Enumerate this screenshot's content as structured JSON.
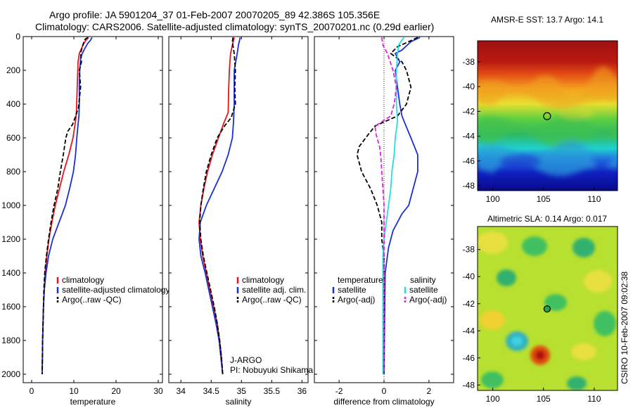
{
  "figure": {
    "title_line1": "Argo profile: JA 5901204_37 01-Feb-2007 20070205_89 42.386S 105.356E",
    "title_line2": "Climatology: CARS2006. Satellite-adjusted climatology: synTS_20070201.nc (0.29d earlier)",
    "side_label": "CSIRO 10-Feb-2007 09:02:38"
  },
  "colors": {
    "climatology": "#e8141b",
    "satellite": "#1a2fd6",
    "argo": "#000000",
    "sat_salinity": "#22e0e0",
    "argo_adj_salinity": "#e020e0"
  },
  "chart_data": [
    {
      "id": "temperature",
      "type": "line",
      "xlabel": "temperature",
      "ylabel": "",
      "xlim": [
        -2,
        31
      ],
      "ylim": [
        2050,
        0
      ],
      "xticks": [
        0,
        10,
        20,
        30
      ],
      "yticks": [
        0,
        200,
        400,
        600,
        800,
        1000,
        1200,
        1400,
        1600,
        1800,
        2000
      ],
      "legend": [
        "climatology",
        "satellite-adjusted climatology",
        "Argo(..raw -QC)"
      ],
      "series": [
        {
          "name": "climatology",
          "color": "#e8141b",
          "dash": "",
          "points": [
            [
              13.5,
              5
            ],
            [
              12.6,
              30
            ],
            [
              12.0,
              60
            ],
            [
              11.3,
              100
            ],
            [
              11.0,
              150
            ],
            [
              10.8,
              300
            ],
            [
              10.6,
              450
            ],
            [
              10.4,
              500
            ],
            [
              9.8,
              600
            ],
            [
              8.8,
              700
            ],
            [
              7.6,
              800
            ],
            [
              6.6,
              900
            ],
            [
              5.6,
              1000
            ],
            [
              4.8,
              1100
            ],
            [
              4.1,
              1200
            ],
            [
              3.6,
              1300
            ],
            [
              3.2,
              1400
            ],
            [
              3.0,
              1500
            ],
            [
              2.8,
              1600
            ],
            [
              2.7,
              1700
            ],
            [
              2.6,
              1800
            ],
            [
              2.55,
              1900
            ],
            [
              2.5,
              2000
            ]
          ]
        },
        {
          "name": "satellite-adjusted climatology",
          "color": "#1a2fd6",
          "dash": "",
          "points": [
            [
              14.3,
              5
            ],
            [
              14.0,
              20
            ],
            [
              13.3,
              40
            ],
            [
              12.6,
              70
            ],
            [
              12.0,
              100
            ],
            [
              11.6,
              130
            ],
            [
              11.4,
              200
            ],
            [
              11.3,
              300
            ],
            [
              11.3,
              400
            ],
            [
              11.2,
              470
            ],
            [
              11.0,
              520
            ],
            [
              10.7,
              600
            ],
            [
              10.4,
              700
            ],
            [
              9.9,
              800
            ],
            [
              9.0,
              900
            ],
            [
              8.0,
              1000
            ],
            [
              6.5,
              1100
            ],
            [
              5.0,
              1200
            ],
            [
              4.0,
              1300
            ],
            [
              3.4,
              1400
            ],
            [
              3.0,
              1500
            ],
            [
              2.8,
              1600
            ],
            [
              2.7,
              1700
            ],
            [
              2.6,
              1800
            ],
            [
              2.55,
              1900
            ],
            [
              2.5,
              2000
            ]
          ]
        },
        {
          "name": "Argo(..raw -QC)",
          "color": "#000000",
          "dash": "6,3",
          "points": [
            [
              13.3,
              5
            ],
            [
              12.7,
              15
            ],
            [
              12.4,
              30
            ],
            [
              12.0,
              60
            ],
            [
              11.6,
              100
            ],
            [
              11.8,
              150
            ],
            [
              11.3,
              200
            ],
            [
              11.6,
              300
            ],
            [
              11.1,
              420
            ],
            [
              10.3,
              480
            ],
            [
              9.7,
              520
            ],
            [
              8.6,
              560
            ],
            [
              8.1,
              600
            ],
            [
              7.5,
              700
            ],
            [
              6.8,
              800
            ],
            [
              6.2,
              900
            ],
            [
              5.3,
              1000
            ],
            [
              4.6,
              1100
            ],
            [
              4.0,
              1200
            ],
            [
              3.5,
              1300
            ],
            [
              3.1,
              1400
            ],
            [
              2.9,
              1500
            ],
            [
              2.8,
              1600
            ],
            [
              2.7,
              1700
            ],
            [
              2.6,
              1800
            ],
            [
              2.55,
              1900
            ],
            [
              2.5,
              2000
            ]
          ]
        }
      ]
    },
    {
      "id": "salinity",
      "type": "line",
      "xlabel": "salinity",
      "ylabel": "",
      "xlim": [
        33.8,
        36.1
      ],
      "ylim": [
        2050,
        0
      ],
      "xticks": [
        34,
        34.5,
        35,
        35.5,
        36
      ],
      "xtick_labels": [
        "34",
        "34.5",
        "35",
        "35.5",
        "36"
      ],
      "legend": [
        "climatology",
        "satellite adj. clim.",
        "Argo(..raw -QC)"
      ],
      "annotation_line1": "J-ARGO",
      "annotation_line2": "PI: Nobuyuki Shikama",
      "series": [
        {
          "name": "climatology",
          "color": "#e8141b",
          "dash": "",
          "points": [
            [
              34.88,
              5
            ],
            [
              34.85,
              50
            ],
            [
              34.82,
              100
            ],
            [
              34.8,
              200
            ],
            [
              34.79,
              300
            ],
            [
              34.78,
              450
            ],
            [
              34.7,
              520
            ],
            [
              34.62,
              600
            ],
            [
              34.52,
              700
            ],
            [
              34.44,
              800
            ],
            [
              34.38,
              900
            ],
            [
              34.33,
              1000
            ],
            [
              34.3,
              1100
            ],
            [
              34.32,
              1200
            ],
            [
              34.36,
              1300
            ],
            [
              34.42,
              1400
            ],
            [
              34.48,
              1500
            ],
            [
              34.54,
              1600
            ],
            [
              34.6,
              1700
            ],
            [
              34.64,
              1800
            ],
            [
              34.67,
              1900
            ],
            [
              34.69,
              2000
            ]
          ]
        },
        {
          "name": "satellite adj. clim.",
          "color": "#1a2fd6",
          "dash": "",
          "points": [
            [
              34.98,
              5
            ],
            [
              34.95,
              50
            ],
            [
              34.93,
              100
            ],
            [
              34.88,
              200
            ],
            [
              34.88,
              300
            ],
            [
              34.88,
              400
            ],
            [
              34.87,
              500
            ],
            [
              34.85,
              600
            ],
            [
              34.78,
              700
            ],
            [
              34.68,
              800
            ],
            [
              34.55,
              900
            ],
            [
              34.42,
              1000
            ],
            [
              34.32,
              1100
            ],
            [
              34.3,
              1200
            ],
            [
              34.33,
              1300
            ],
            [
              34.4,
              1400
            ],
            [
              34.46,
              1500
            ],
            [
              34.52,
              1600
            ],
            [
              34.58,
              1700
            ],
            [
              34.63,
              1800
            ],
            [
              34.66,
              1900
            ],
            [
              34.69,
              2000
            ]
          ]
        },
        {
          "name": "Argo(..raw -QC)",
          "color": "#000000",
          "dash": "6,3",
          "points": [
            [
              34.86,
              5
            ],
            [
              34.85,
              30
            ],
            [
              34.88,
              100
            ],
            [
              34.9,
              200
            ],
            [
              34.89,
              300
            ],
            [
              34.9,
              400
            ],
            [
              34.83,
              480
            ],
            [
              34.72,
              530
            ],
            [
              34.6,
              600
            ],
            [
              34.5,
              700
            ],
            [
              34.42,
              800
            ],
            [
              34.37,
              900
            ],
            [
              34.33,
              1000
            ],
            [
              34.31,
              1100
            ],
            [
              34.33,
              1200
            ],
            [
              34.37,
              1300
            ],
            [
              34.43,
              1400
            ],
            [
              34.49,
              1500
            ],
            [
              34.55,
              1600
            ],
            [
              34.6,
              1700
            ],
            [
              34.64,
              1800
            ],
            [
              34.67,
              1900
            ],
            [
              34.69,
              2000
            ]
          ]
        }
      ]
    },
    {
      "id": "difference",
      "type": "line",
      "xlabel": "difference from climatology",
      "ylabel": "",
      "xlim": [
        -3.1,
        3.1
      ],
      "ylim": [
        2050,
        0
      ],
      "xticks": [
        -2,
        0,
        2
      ],
      "legend_temperature_title": "temperature",
      "legend_salinity_title": "salinity",
      "legend": [
        "satellite",
        "Argo(-adj)",
        "satellite",
        "Argo(-adj)"
      ],
      "series": [
        {
          "name": "temperature satellite",
          "color": "#1a2fd6",
          "dash": "",
          "points": [
            [
              1.6,
              5
            ],
            [
              1.2,
              30
            ],
            [
              0.8,
              80
            ],
            [
              0.5,
              100
            ],
            [
              0.7,
              150
            ],
            [
              0.5,
              200
            ],
            [
              0.6,
              300
            ],
            [
              0.7,
              400
            ],
            [
              0.8,
              470
            ],
            [
              0.95,
              520
            ],
            [
              1.2,
              600
            ],
            [
              1.5,
              700
            ],
            [
              1.5,
              800
            ],
            [
              1.3,
              900
            ],
            [
              1.1,
              1000
            ],
            [
              0.8,
              1050
            ],
            [
              0.4,
              1150
            ],
            [
              0.2,
              1250
            ],
            [
              0.05,
              1400
            ],
            [
              0.0,
              2000
            ]
          ]
        },
        {
          "name": "temperature Argo(-adj)",
          "color": "#000000",
          "dash": "6,3",
          "points": [
            [
              1.5,
              5
            ],
            [
              1.1,
              30
            ],
            [
              0.6,
              60
            ],
            [
              0.3,
              100
            ],
            [
              0.8,
              150
            ],
            [
              1.0,
              200
            ],
            [
              1.2,
              300
            ],
            [
              1.0,
              400
            ],
            [
              0.6,
              470
            ],
            [
              -0.4,
              530
            ],
            [
              -0.7,
              580
            ],
            [
              -1.1,
              650
            ],
            [
              -1.2,
              700
            ],
            [
              -1.0,
              800
            ],
            [
              -0.6,
              900
            ],
            [
              -0.3,
              1000
            ],
            [
              -0.1,
              1100
            ],
            [
              -0.1,
              1200
            ],
            [
              0.0,
              1300
            ],
            [
              0.0,
              2000
            ]
          ]
        },
        {
          "name": "salinity satellite",
          "color": "#22e0e0",
          "dash": "",
          "points": [
            [
              0.9,
              5
            ],
            [
              0.8,
              20
            ],
            [
              0.65,
              50
            ],
            [
              0.6,
              100
            ],
            [
              0.55,
              200
            ],
            [
              0.55,
              300
            ],
            [
              0.55,
              400
            ],
            [
              0.6,
              500
            ],
            [
              0.55,
              550
            ],
            [
              0.5,
              600
            ],
            [
              0.45,
              700
            ],
            [
              0.35,
              800
            ],
            [
              0.3,
              900
            ],
            [
              0.2,
              1000
            ],
            [
              0.1,
              1100
            ],
            [
              0.0,
              1200
            ],
            [
              -0.05,
              1300
            ],
            [
              -0.05,
              1400
            ],
            [
              -0.05,
              1600
            ],
            [
              -0.05,
              1800
            ],
            [
              -0.05,
              2000
            ]
          ]
        },
        {
          "name": "salinity Argo(-adj)",
          "color": "#e020e0",
          "dash": "6,3",
          "points": [
            [
              -0.1,
              5
            ],
            [
              -0.05,
              50
            ],
            [
              0.15,
              100
            ],
            [
              0.4,
              200
            ],
            [
              0.55,
              300
            ],
            [
              0.45,
              400
            ],
            [
              0.3,
              470
            ],
            [
              -0.4,
              530
            ],
            [
              -0.35,
              580
            ],
            [
              -0.2,
              650
            ],
            [
              -0.15,
              700
            ],
            [
              -0.1,
              800
            ],
            [
              -0.05,
              900
            ],
            [
              0.0,
              1000
            ],
            [
              0.0,
              1200
            ],
            [
              0.0,
              1400
            ],
            [
              0.0,
              2000
            ]
          ]
        }
      ]
    },
    {
      "id": "sst_map",
      "type": "heatmap",
      "title": "AMSR-E SST: 13.7 Argo: 14.1",
      "xlim": [
        98.5,
        112.3
      ],
      "ylim": [
        -48.4,
        -36.3
      ],
      "xticks": [
        100,
        105,
        110
      ],
      "yticks": [
        -38,
        -40,
        -42,
        -44,
        -46,
        -48
      ],
      "marker": {
        "lon": 105.356,
        "lat": -42.386
      }
    },
    {
      "id": "sla_map",
      "type": "heatmap",
      "title": "Altimetric SLA: 0.14 Argo: 0.017",
      "xlim": [
        98.5,
        112.3
      ],
      "ylim": [
        -48.4,
        -36.3
      ],
      "xticks": [
        100,
        105,
        110
      ],
      "yticks": [
        -38,
        -40,
        -42,
        -44,
        -46,
        -48
      ],
      "marker": {
        "lon": 105.356,
        "lat": -42.386
      }
    }
  ]
}
